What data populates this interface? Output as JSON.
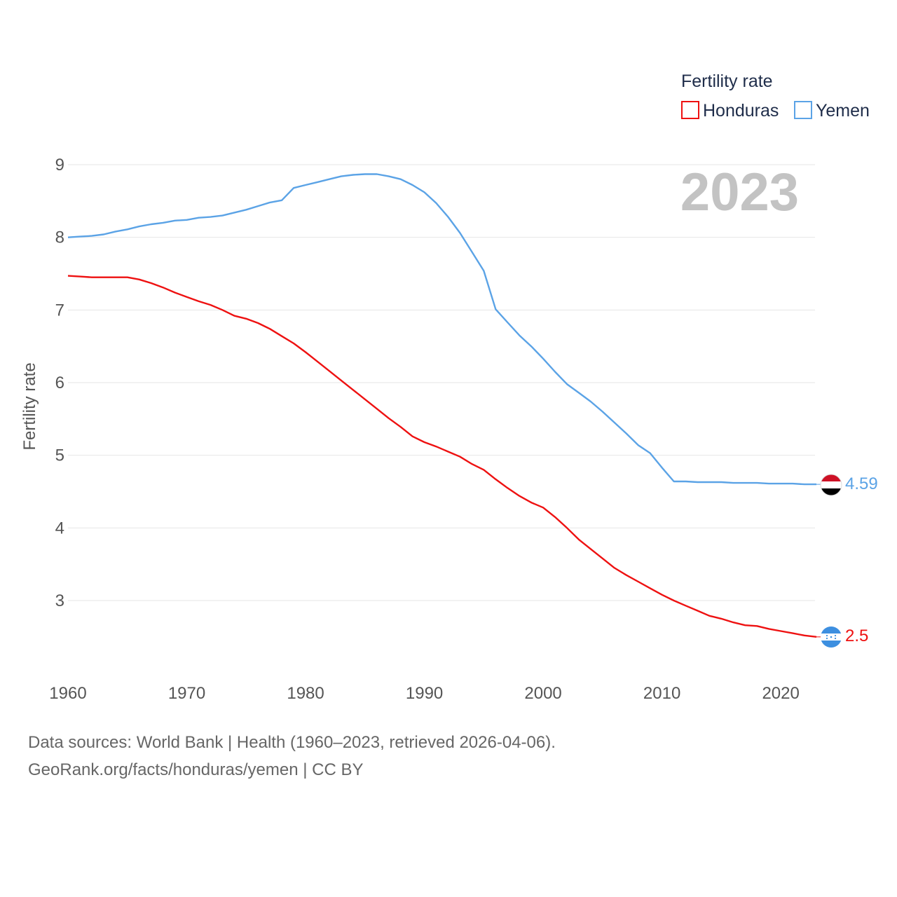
{
  "chart_data": {
    "type": "line",
    "ylabel": "Fertility rate",
    "xlabel": "",
    "ylim": [
      2,
      9.3
    ],
    "xlim": [
      1960,
      2023
    ],
    "yticks": [
      3,
      4,
      5,
      6,
      7,
      8,
      9
    ],
    "xticks": [
      1960,
      1970,
      1980,
      1990,
      2000,
      2010,
      2020
    ],
    "grid": "horizontal",
    "legend_title": "Fertility rate",
    "legend_position": "top-right",
    "year_label": "2023",
    "x": [
      1960,
      1961,
      1962,
      1963,
      1964,
      1965,
      1966,
      1967,
      1968,
      1969,
      1970,
      1971,
      1972,
      1973,
      1974,
      1975,
      1976,
      1977,
      1978,
      1979,
      1980,
      1981,
      1982,
      1983,
      1984,
      1985,
      1986,
      1987,
      1988,
      1989,
      1990,
      1991,
      1992,
      1993,
      1994,
      1995,
      1996,
      1997,
      1998,
      1999,
      2000,
      2001,
      2002,
      2003,
      2004,
      2005,
      2006,
      2007,
      2008,
      2009,
      2010,
      2011,
      2012,
      2013,
      2014,
      2015,
      2016,
      2017,
      2018,
      2019,
      2020,
      2021,
      2022,
      2023
    ],
    "series": [
      {
        "name": "Honduras",
        "color": "#ee1111",
        "end_label": "2.5",
        "flag": "honduras-flag-icon",
        "values": [
          7.47,
          7.46,
          7.45,
          7.45,
          7.45,
          7.45,
          7.42,
          7.37,
          7.31,
          7.24,
          7.18,
          7.12,
          7.07,
          7.0,
          6.92,
          6.88,
          6.82,
          6.74,
          6.64,
          6.54,
          6.42,
          6.29,
          6.16,
          6.03,
          5.9,
          5.77,
          5.64,
          5.51,
          5.39,
          5.26,
          5.18,
          5.12,
          5.05,
          4.98,
          4.88,
          4.8,
          4.67,
          4.55,
          4.44,
          4.35,
          4.28,
          4.15,
          4.0,
          3.84,
          3.71,
          3.58,
          3.45,
          3.35,
          3.26,
          3.17,
          3.08,
          3.0,
          2.93,
          2.86,
          2.79,
          2.75,
          2.7,
          2.66,
          2.65,
          2.61,
          2.58,
          2.55,
          2.52,
          2.5
        ]
      },
      {
        "name": "Yemen",
        "color": "#5ba3e6",
        "end_label": "4.59",
        "flag": "yemen-flag-icon",
        "values": [
          8.0,
          8.01,
          8.02,
          8.04,
          8.08,
          8.11,
          8.15,
          8.18,
          8.2,
          8.23,
          8.24,
          8.27,
          8.28,
          8.3,
          8.34,
          8.38,
          8.43,
          8.48,
          8.51,
          8.68,
          8.72,
          8.76,
          8.8,
          8.84,
          8.86,
          8.87,
          8.87,
          8.84,
          8.8,
          8.72,
          8.62,
          8.47,
          8.28,
          8.06,
          7.8,
          7.54,
          7.01,
          6.83,
          6.65,
          6.5,
          6.33,
          6.15,
          5.98,
          5.86,
          5.74,
          5.6,
          5.45,
          5.3,
          5.14,
          5.03,
          4.83,
          4.64,
          4.64,
          4.63,
          4.63,
          4.63,
          4.62,
          4.62,
          4.62,
          4.61,
          4.61,
          4.61,
          4.6,
          4.6
        ]
      }
    ]
  },
  "footer": {
    "sources": "Data sources: World Bank | Health (1960–2023, retrieved 2026-04-06).",
    "attribution": "GeoRank.org/facts/honduras/yemen | CC BY"
  }
}
